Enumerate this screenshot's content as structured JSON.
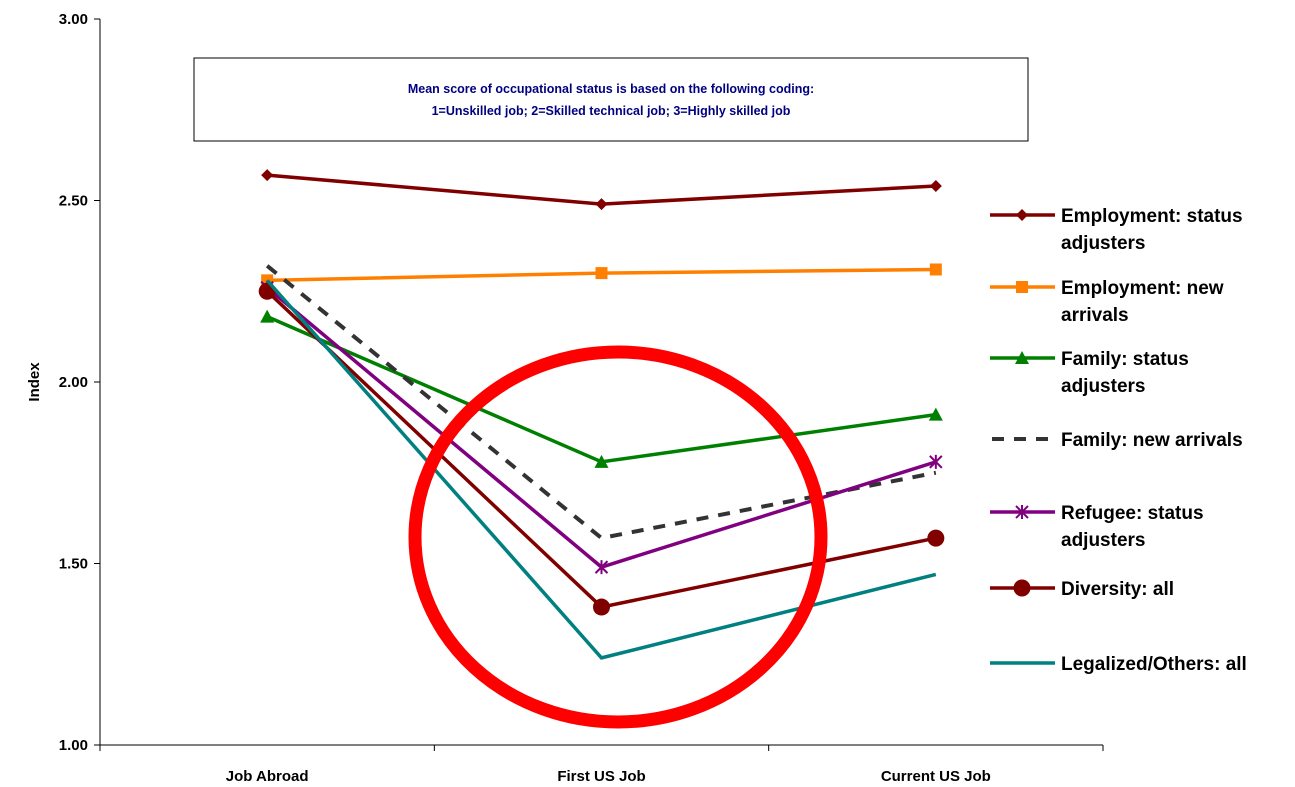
{
  "chart_data": {
    "type": "line",
    "title": "",
    "xlabel": "",
    "ylabel": "Index",
    "ylim": [
      1.0,
      3.0
    ],
    "yticks": [
      "1.00",
      "1.50",
      "2.00",
      "2.50",
      "3.00"
    ],
    "categories": [
      "Job Abroad",
      "First US Job",
      "Current US Job"
    ],
    "grid": false,
    "legend_position": "right",
    "annotation": {
      "line1": "Mean score of occupational status is based on the following coding:",
      "line2": "1=Unskilled job; 2=Skilled technical job; 3=Highly skilled job"
    },
    "highlight": "red circle around First US Job",
    "series": [
      {
        "name": "Employment: status adjusters",
        "label_lines": [
          "Employment: status",
          "adjusters"
        ],
        "values": [
          2.57,
          2.49,
          2.54
        ],
        "color": "#800000",
        "marker": "diamond",
        "dashed": false
      },
      {
        "name": "Employment: new arrivals",
        "label_lines": [
          "Employment: new",
          "arrivals"
        ],
        "values": [
          2.28,
          2.3,
          2.31
        ],
        "color": "#ff8000",
        "marker": "square",
        "dashed": false
      },
      {
        "name": "Family: status adjusters",
        "label_lines": [
          "Family: status",
          "adjusters"
        ],
        "values": [
          2.18,
          1.78,
          1.91
        ],
        "color": "#008000",
        "marker": "triangle",
        "dashed": false
      },
      {
        "name": "Family: new arrivals",
        "label_lines": [
          "Family: new arrivals"
        ],
        "values": [
          2.32,
          1.57,
          1.75
        ],
        "color": "#333333",
        "marker": "none",
        "dashed": true
      },
      {
        "name": "Refugee: status adjusters",
        "label_lines": [
          "Refugee: status",
          "adjusters"
        ],
        "values": [
          2.26,
          1.49,
          1.78
        ],
        "color": "#800080",
        "marker": "star",
        "dashed": false
      },
      {
        "name": "Diversity: all",
        "label_lines": [
          "Diversity: all"
        ],
        "values": [
          2.25,
          1.38,
          1.57
        ],
        "color": "#800000",
        "marker": "circle",
        "dashed": false
      },
      {
        "name": "Legalized/Others: all",
        "label_lines": [
          "Legalized/Others: all"
        ],
        "values": [
          2.28,
          1.24,
          1.47
        ],
        "color": "#008080",
        "marker": "none",
        "dashed": false
      }
    ]
  }
}
